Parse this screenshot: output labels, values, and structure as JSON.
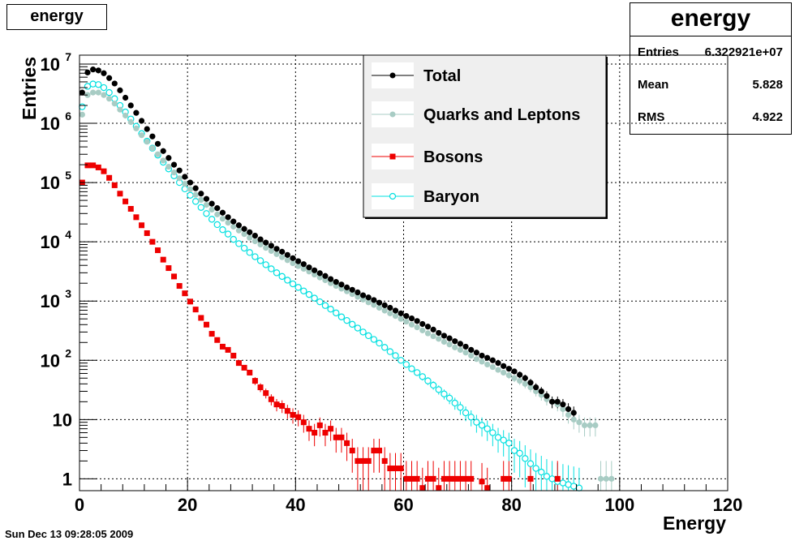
{
  "header": {
    "title": "energy"
  },
  "stats": {
    "title": "energy",
    "rows": [
      {
        "key": "Entries",
        "value": "6.322921e+07"
      },
      {
        "key": "Mean",
        "value": "5.828"
      },
      {
        "key": "RMS",
        "value": "4.922"
      }
    ]
  },
  "footer": {
    "timestamp": "Sun Dec 13 09:28:05 2009"
  },
  "colors": {
    "total": "#000000",
    "quarks": "#a8ccc4",
    "bosons": "#ee0000",
    "baryon": "#00e0e0",
    "legend_bg": "#efefef"
  },
  "chart_data": {
    "type": "scatter",
    "xlabel": "Energy",
    "ylabel": "Entries",
    "xlim": [
      0,
      120
    ],
    "ylim": [
      0.5,
      15000000
    ],
    "yscale": "log",
    "grid": true,
    "legend_position": "top-right",
    "x_ticks": [
      {
        "value": 0,
        "label": "0"
      },
      {
        "value": 20,
        "label": "20"
      },
      {
        "value": 40,
        "label": "40"
      },
      {
        "value": 60,
        "label": "60"
      },
      {
        "value": 80,
        "label": "80"
      },
      {
        "value": 100,
        "label": "100"
      },
      {
        "value": 120,
        "label": "120"
      }
    ],
    "y_ticks": [
      {
        "value": 1,
        "label": "1",
        "exp": ""
      },
      {
        "value": 10,
        "label": "10",
        "exp": ""
      },
      {
        "value": 100,
        "label": "10",
        "exp": "2"
      },
      {
        "value": 1000,
        "label": "10",
        "exp": "3"
      },
      {
        "value": 10000,
        "label": "10",
        "exp": "4"
      },
      {
        "value": 100000,
        "label": "10",
        "exp": "5"
      },
      {
        "value": 1000000,
        "label": "10",
        "exp": "6"
      },
      {
        "value": 10000000,
        "label": "10",
        "exp": "7"
      }
    ],
    "series": [
      {
        "name": "Total",
        "marker": "dot",
        "color": "#000000",
        "x": [
          0.5,
          1.5,
          2.5,
          3.5,
          4.5,
          5.5,
          6.5,
          7.5,
          8.5,
          9.5,
          10.5,
          11.5,
          12.5,
          13.5,
          14.5,
          15.5,
          16.5,
          17.5,
          18.5,
          19.5,
          20.5,
          21.5,
          22.5,
          23.5,
          24.5,
          25.5,
          26.5,
          27.5,
          28.5,
          29.5,
          30.5,
          31.5,
          32.5,
          33.5,
          34.5,
          35.5,
          36.5,
          37.5,
          38.5,
          39.5,
          40.5,
          41.5,
          42.5,
          43.5,
          44.5,
          45.5,
          46.5,
          47.5,
          48.5,
          49.5,
          50.5,
          51.5,
          52.5,
          53.5,
          54.5,
          55.5,
          56.5,
          57.5,
          58.5,
          59.5,
          60.5,
          61.5,
          62.5,
          63.5,
          64.5,
          65.5,
          66.5,
          67.5,
          68.5,
          69.5,
          70.5,
          71.5,
          72.5,
          73.5,
          74.5,
          75.5,
          76.5,
          77.5,
          78.5,
          79.5,
          80.5,
          81.5,
          82.5,
          83.5,
          84.5,
          85.5,
          86.5,
          87.5,
          88.5,
          89.5,
          90.5,
          91.5
        ],
        "y": [
          3300000,
          7200000,
          8100000,
          7800000,
          7000000,
          5800000,
          4700000,
          3600000,
          2700000,
          2000000,
          1500000,
          1100000,
          800000,
          600000,
          450000,
          340000,
          260000,
          200000,
          160000,
          125000,
          100000,
          80000,
          65000,
          53000,
          44000,
          37000,
          31000,
          26000,
          22000,
          19000,
          16500,
          14500,
          12700,
          11000,
          9700,
          8600,
          7600,
          6800,
          6000,
          5300,
          4700,
          4200,
          3700,
          3300,
          2950,
          2650,
          2350,
          2100,
          1900,
          1700,
          1550,
          1400,
          1250,
          1150,
          1040,
          940,
          850,
          770,
          690,
          620,
          560,
          510,
          460,
          410,
          370,
          330,
          290,
          260,
          235,
          210,
          190,
          170,
          150,
          135,
          120,
          110,
          100,
          90,
          80,
          72,
          65,
          57,
          50,
          42,
          35,
          30,
          25,
          20,
          20,
          18,
          15,
          13
        ]
      },
      {
        "name": "Quarks and Leptons",
        "marker": "dot",
        "color": "#a8ccc4",
        "x": [
          0.5,
          1.5,
          2.5,
          3.5,
          4.5,
          5.5,
          6.5,
          7.5,
          8.5,
          9.5,
          10.5,
          11.5,
          12.5,
          13.5,
          14.5,
          15.5,
          16.5,
          17.5,
          18.5,
          19.5,
          20.5,
          21.5,
          22.5,
          23.5,
          24.5,
          25.5,
          26.5,
          27.5,
          28.5,
          29.5,
          30.5,
          31.5,
          32.5,
          33.5,
          34.5,
          35.5,
          36.5,
          37.5,
          38.5,
          39.5,
          40.5,
          41.5,
          42.5,
          43.5,
          44.5,
          45.5,
          46.5,
          47.5,
          48.5,
          49.5,
          50.5,
          51.5,
          52.5,
          53.5,
          54.5,
          55.5,
          56.5,
          57.5,
          58.5,
          59.5,
          60.5,
          61.5,
          62.5,
          63.5,
          64.5,
          65.5,
          66.5,
          67.5,
          68.5,
          69.5,
          70.5,
          71.5,
          72.5,
          73.5,
          74.5,
          75.5,
          76.5,
          77.5,
          78.5,
          79.5,
          80.5,
          81.5,
          82.5,
          83.5,
          84.5,
          85.5,
          86.5,
          87.5,
          88.5,
          89.5,
          90.5,
          91.5,
          92.5,
          93.5,
          94.5,
          95.5,
          96.5,
          97.5,
          98.5
        ],
        "y": [
          1400000,
          3000000,
          3300000,
          3300000,
          3000000,
          2600000,
          2150000,
          1700000,
          1350000,
          1050000,
          820000,
          630000,
          490000,
          380000,
          300000,
          235000,
          185000,
          148000,
          118000,
          95000,
          77000,
          62000,
          51000,
          42000,
          35000,
          29000,
          24500,
          21000,
          18000,
          15500,
          13500,
          11700,
          10200,
          9000,
          7900,
          7000,
          6200,
          5500,
          4900,
          4350,
          3900,
          3500,
          3150,
          2800,
          2500,
          2250,
          2000,
          1800,
          1620,
          1460,
          1310,
          1180,
          1060,
          950,
          860,
          770,
          690,
          620,
          560,
          500,
          450,
          400,
          360,
          320,
          285,
          255,
          230,
          205,
          185,
          165,
          150,
          135,
          120,
          105,
          95,
          85,
          77,
          69,
          62,
          56,
          50,
          45,
          40,
          35,
          30,
          26,
          22,
          20,
          18,
          15,
          12,
          10,
          9,
          8,
          8,
          8,
          1,
          1,
          1
        ]
      },
      {
        "name": "Bosons",
        "marker": "square",
        "color": "#ee0000",
        "x": [
          0.5,
          1.5,
          2.5,
          3.5,
          4.5,
          5.5,
          6.5,
          7.5,
          8.5,
          9.5,
          10.5,
          11.5,
          12.5,
          13.5,
          14.5,
          15.5,
          16.5,
          17.5,
          18.5,
          19.5,
          20.5,
          21.5,
          22.5,
          23.5,
          24.5,
          25.5,
          26.5,
          27.5,
          28.5,
          29.5,
          30.5,
          31.5,
          32.5,
          33.5,
          34.5,
          35.5,
          36.5,
          37.5,
          38.5,
          39.5,
          40.5,
          41.5,
          42.5,
          43.5,
          44.5,
          45.5,
          46.5,
          47.5,
          48.5,
          49.5,
          50.5,
          51.5,
          52.5,
          53.5,
          54.5,
          55.5,
          56.5,
          57.5,
          58.5,
          59.5,
          60.5,
          61.5,
          62.5,
          63.5,
          64.5,
          65.5,
          66.5,
          67.5,
          68.5,
          69.5,
          70.5,
          71.5,
          72.5,
          74.5,
          75.5,
          78.5,
          79.5,
          83.5,
          88.5
        ],
        "y": [
          100000,
          195000,
          195000,
          180000,
          155000,
          120000,
          90000,
          65000,
          48000,
          36000,
          26000,
          19000,
          14000,
          10000,
          7200,
          5000,
          3600,
          2600,
          1800,
          1350,
          980,
          720,
          520,
          400,
          280,
          220,
          170,
          150,
          120,
          90,
          75,
          62,
          45,
          35,
          28,
          22,
          18,
          17,
          14,
          12,
          11,
          9,
          7,
          6,
          8,
          6,
          7,
          5,
          5,
          4,
          3,
          2,
          2,
          2,
          3,
          3,
          2,
          1.5,
          1.5,
          1.5,
          1,
          1,
          1,
          0.7,
          1,
          1,
          0.7,
          1,
          1,
          1,
          1,
          1,
          1,
          0.9,
          0.7,
          1,
          1,
          1,
          1
        ]
      },
      {
        "name": "Baryon",
        "marker": "circle",
        "color": "#00e0e0",
        "x": [
          0.5,
          1.5,
          2.5,
          3.5,
          4.5,
          5.5,
          6.5,
          7.5,
          8.5,
          9.5,
          10.5,
          11.5,
          12.5,
          13.5,
          14.5,
          15.5,
          16.5,
          17.5,
          18.5,
          19.5,
          20.5,
          21.5,
          22.5,
          23.5,
          24.5,
          25.5,
          26.5,
          27.5,
          28.5,
          29.5,
          30.5,
          31.5,
          32.5,
          33.5,
          34.5,
          35.5,
          36.5,
          37.5,
          38.5,
          39.5,
          40.5,
          41.5,
          42.5,
          43.5,
          44.5,
          45.5,
          46.5,
          47.5,
          48.5,
          49.5,
          50.5,
          51.5,
          52.5,
          53.5,
          54.5,
          55.5,
          56.5,
          57.5,
          58.5,
          59.5,
          60.5,
          61.5,
          62.5,
          63.5,
          64.5,
          65.5,
          66.5,
          67.5,
          68.5,
          69.5,
          70.5,
          71.5,
          72.5,
          73.5,
          74.5,
          75.5,
          76.5,
          77.5,
          78.5,
          79.5,
          80.5,
          81.5,
          82.5,
          83.5,
          84.5,
          85.5,
          86.5,
          87.5,
          88.5,
          89.5,
          90.5,
          91.5,
          92.5
        ],
        "y": [
          1900000,
          4200000,
          4600000,
          4500000,
          4000000,
          3300000,
          2600000,
          2000000,
          1550000,
          1180000,
          890000,
          670000,
          500000,
          380000,
          290000,
          220000,
          170000,
          130000,
          100000,
          78000,
          61000,
          48000,
          38000,
          30000,
          24000,
          19500,
          16000,
          13500,
          11000,
          9300,
          7800,
          6600,
          5600,
          4800,
          4100,
          3500,
          3000,
          2600,
          2250,
          1950,
          1700,
          1480,
          1290,
          1120,
          970,
          840,
          730,
          630,
          540,
          470,
          405,
          350,
          300,
          260,
          225,
          195,
          165,
          140,
          120,
          100,
          85,
          72,
          62,
          53,
          45,
          38,
          32,
          27,
          23,
          19,
          16,
          13,
          11,
          9,
          8,
          7,
          6,
          5,
          4.5,
          4,
          3,
          2.7,
          2.2,
          1.8,
          1.5,
          1.3,
          1.1,
          1,
          0.9,
          0.85,
          0.8,
          0.75,
          0.7
        ]
      }
    ]
  },
  "legend": {
    "items": [
      {
        "label": "Total",
        "marker": "dot",
        "color": "#000000"
      },
      {
        "label": "Quarks and Leptons",
        "marker": "dot",
        "color": "#a8ccc4"
      },
      {
        "label": "Bosons",
        "marker": "square",
        "color": "#ee0000"
      },
      {
        "label": "Baryon",
        "marker": "circle",
        "color": "#00e0e0"
      }
    ]
  }
}
